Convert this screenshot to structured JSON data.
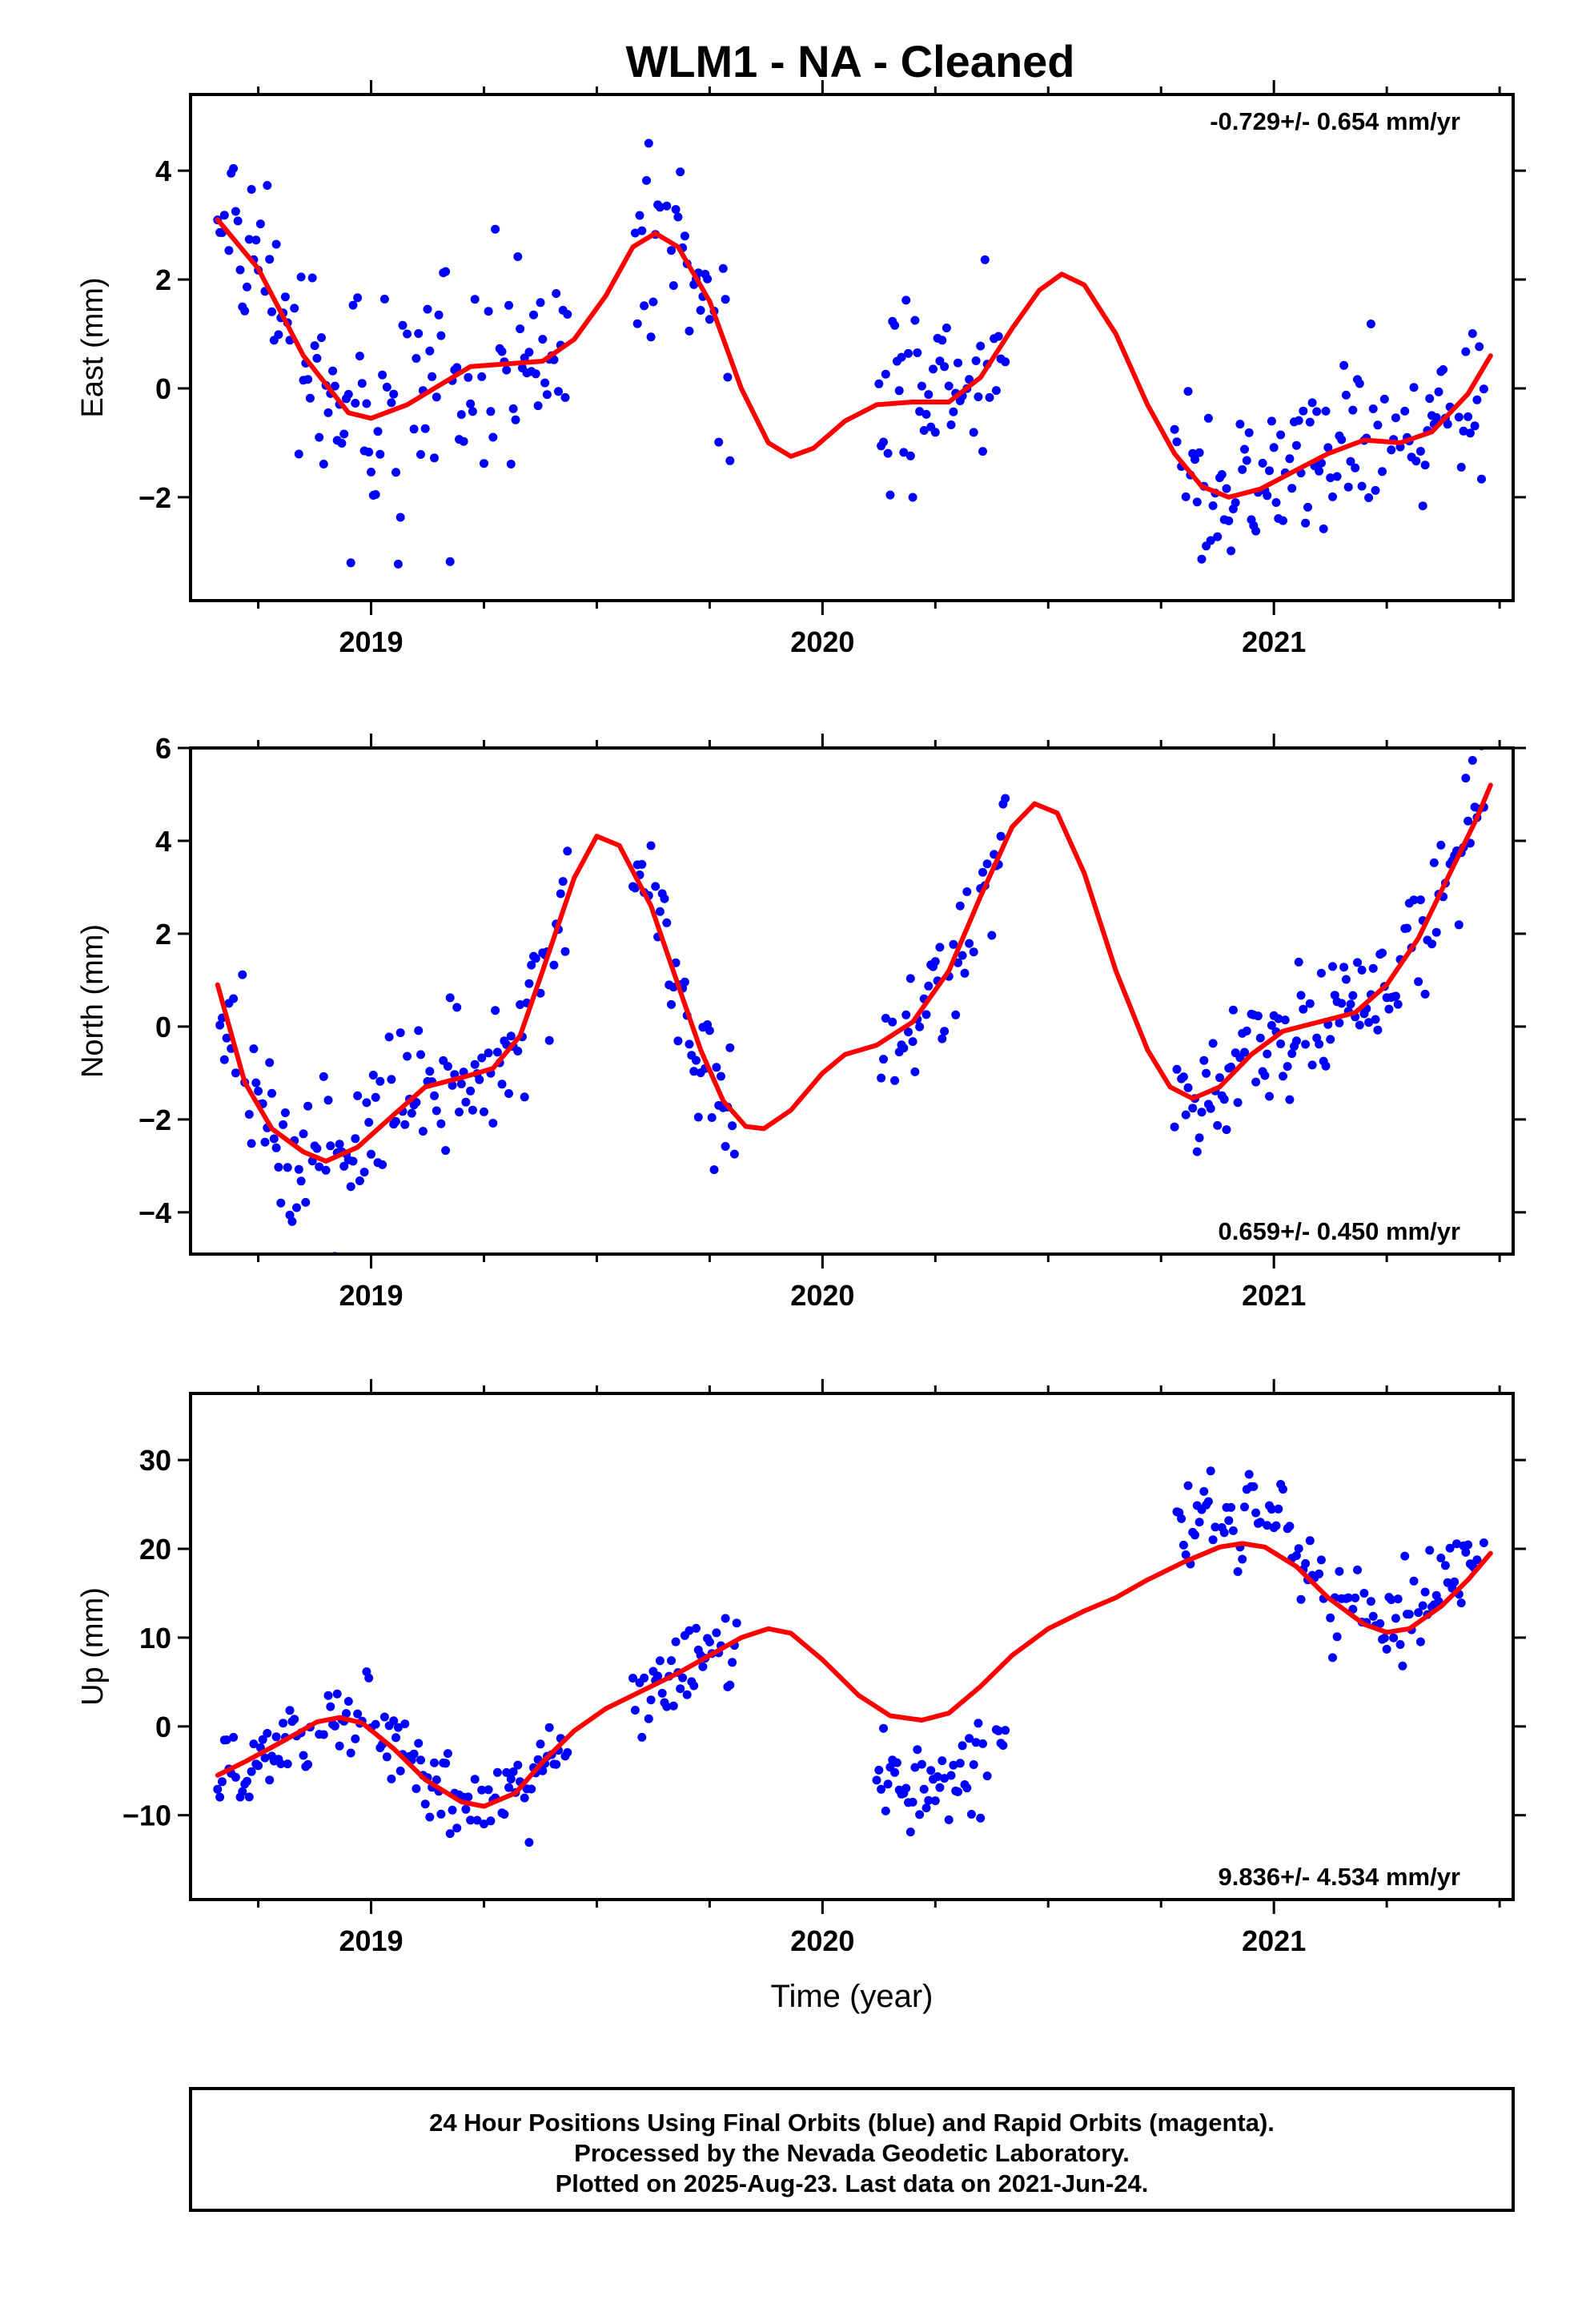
{
  "page": {
    "title": "WLM1  - NA - Cleaned",
    "footer_lines": [
      "24 Hour Positions Using Final Orbits (blue) and Rapid Orbits (magenta).",
      "Processed by the Nevada Geodetic Laboratory.",
      "Plotted on 2025-Aug-23. Last data on 2021-Jun-24."
    ]
  },
  "chart_data": [
    {
      "type": "scatter",
      "id": "east",
      "ylabel": "East (mm)",
      "xlabel": "",
      "rate_label": "-0.729+/- 0.654 mm/yr",
      "rate_position": "top-right",
      "xlim": [
        2018.6,
        2021.53
      ],
      "ylim": [
        -3.9,
        5.4
      ],
      "xticks": [
        2019,
        2020,
        2021
      ],
      "xtick_labels": [
        "2019",
        "2020",
        "2021"
      ],
      "yticks": [
        -2,
        0,
        2,
        4
      ],
      "ytick_labels": [
        "−2",
        "0",
        "2",
        "4"
      ],
      "point_color": "#0000ff",
      "fit_color": "#ff0000",
      "fit": [
        [
          2018.66,
          3.1
        ],
        [
          2018.75,
          2.2
        ],
        [
          2018.85,
          0.6
        ],
        [
          2018.95,
          -0.45
        ],
        [
          2019.0,
          -0.55
        ],
        [
          2019.08,
          -0.3
        ],
        [
          2019.15,
          0.05
        ],
        [
          2019.22,
          0.4
        ],
        [
          2019.3,
          0.45
        ],
        [
          2019.38,
          0.5
        ],
        [
          2019.45,
          0.9
        ],
        [
          2019.52,
          1.7
        ],
        [
          2019.58,
          2.6
        ],
        [
          2019.63,
          2.85
        ],
        [
          2019.68,
          2.6
        ],
        [
          2019.75,
          1.6
        ],
        [
          2019.82,
          0.0
        ],
        [
          2019.88,
          -1.0
        ],
        [
          2019.93,
          -1.25
        ],
        [
          2019.98,
          -1.1
        ],
        [
          2020.05,
          -0.6
        ],
        [
          2020.12,
          -0.3
        ],
        [
          2020.2,
          -0.25
        ],
        [
          2020.28,
          -0.25
        ],
        [
          2020.35,
          0.2
        ],
        [
          2020.42,
          1.1
        ],
        [
          2020.48,
          1.8
        ],
        [
          2020.53,
          2.1
        ],
        [
          2020.58,
          1.9
        ],
        [
          2020.65,
          1.0
        ],
        [
          2020.72,
          -0.3
        ],
        [
          2020.78,
          -1.2
        ],
        [
          2020.84,
          -1.8
        ],
        [
          2020.9,
          -2.0
        ],
        [
          2020.97,
          -1.85
        ],
        [
          2021.05,
          -1.5
        ],
        [
          2021.12,
          -1.2
        ],
        [
          2021.2,
          -0.95
        ],
        [
          2021.28,
          -1.0
        ],
        [
          2021.35,
          -0.8
        ],
        [
          2021.43,
          -0.1
        ],
        [
          2021.48,
          0.6
        ]
      ],
      "segments": [
        {
          "x0": 2018.66,
          "x1": 2019.44,
          "amp": 1.2
        },
        {
          "x0": 2019.58,
          "x1": 2019.8,
          "amp": 1.25
        },
        {
          "x0": 2020.12,
          "x1": 2020.41,
          "amp": 1.05
        },
        {
          "x0": 2020.78,
          "x1": 2021.47,
          "amp": 0.9
        }
      ]
    },
    {
      "type": "scatter",
      "id": "north",
      "ylabel": "North (mm)",
      "xlabel": "",
      "rate_label": "0.659+/- 0.450 mm/yr",
      "rate_position": "bottom-right",
      "xlim": [
        2018.6,
        2021.53
      ],
      "ylim": [
        -4.9,
        6.0
      ],
      "xticks": [
        2019,
        2020,
        2021
      ],
      "xtick_labels": [
        "2019",
        "2020",
        "2021"
      ],
      "yticks": [
        -4,
        -2,
        0,
        2,
        4,
        6
      ],
      "ytick_labels": [
        "−4",
        "−2",
        "0",
        "2",
        "4",
        "6"
      ],
      "point_color": "#0000ff",
      "fit_color": "#ff0000",
      "fit": [
        [
          2018.66,
          0.9
        ],
        [
          2018.72,
          -1.2
        ],
        [
          2018.78,
          -2.2
        ],
        [
          2018.85,
          -2.7
        ],
        [
          2018.9,
          -2.9
        ],
        [
          2018.97,
          -2.6
        ],
        [
          2019.05,
          -1.9
        ],
        [
          2019.12,
          -1.3
        ],
        [
          2019.2,
          -1.1
        ],
        [
          2019.27,
          -0.9
        ],
        [
          2019.33,
          -0.2
        ],
        [
          2019.38,
          1.2
        ],
        [
          2019.45,
          3.2
        ],
        [
          2019.5,
          4.1
        ],
        [
          2019.55,
          3.9
        ],
        [
          2019.62,
          2.6
        ],
        [
          2019.68,
          0.9
        ],
        [
          2019.73,
          -0.5
        ],
        [
          2019.78,
          -1.6
        ],
        [
          2019.83,
          -2.15
        ],
        [
          2019.87,
          -2.2
        ],
        [
          2019.93,
          -1.8
        ],
        [
          2020.0,
          -1.0
        ],
        [
          2020.05,
          -0.6
        ],
        [
          2020.12,
          -0.4
        ],
        [
          2020.2,
          0.1
        ],
        [
          2020.28,
          1.2
        ],
        [
          2020.35,
          2.8
        ],
        [
          2020.42,
          4.3
        ],
        [
          2020.47,
          4.8
        ],
        [
          2020.52,
          4.6
        ],
        [
          2020.58,
          3.3
        ],
        [
          2020.65,
          1.2
        ],
        [
          2020.72,
          -0.5
        ],
        [
          2020.77,
          -1.3
        ],
        [
          2020.82,
          -1.55
        ],
        [
          2020.88,
          -1.3
        ],
        [
          2020.95,
          -0.6
        ],
        [
          2021.02,
          -0.1
        ],
        [
          2021.1,
          0.1
        ],
        [
          2021.18,
          0.3
        ],
        [
          2021.25,
          0.9
        ],
        [
          2021.32,
          1.9
        ],
        [
          2021.38,
          3.1
        ],
        [
          2021.45,
          4.5
        ],
        [
          2021.48,
          5.2
        ]
      ],
      "segments": [
        {
          "x0": 2018.66,
          "x1": 2019.44,
          "amp": 1.05
        },
        {
          "x0": 2019.58,
          "x1": 2019.81,
          "amp": 0.95
        },
        {
          "x0": 2020.13,
          "x1": 2020.41,
          "amp": 0.95
        },
        {
          "x0": 2020.78,
          "x1": 2021.47,
          "amp": 0.85
        }
      ]
    },
    {
      "type": "scatter",
      "id": "up",
      "ylabel": "Up (mm)",
      "xlabel": "Time (year)",
      "rate_label": "9.836+/- 4.534 mm/yr",
      "rate_position": "bottom-right",
      "xlim": [
        2018.6,
        2021.53
      ],
      "ylim": [
        -19.5,
        37.5
      ],
      "xticks": [
        2019,
        2020,
        2021
      ],
      "xtick_labels": [
        "2019",
        "2020",
        "2021"
      ],
      "yticks": [
        -10,
        0,
        10,
        20,
        30
      ],
      "ytick_labels": [
        "−10",
        "0",
        "10",
        "20",
        "30"
      ],
      "point_color": "#0000ff",
      "fit_color": "#ff0000",
      "fit": [
        [
          2018.66,
          -5.5
        ],
        [
          2018.72,
          -4.0
        ],
        [
          2018.8,
          -1.8
        ],
        [
          2018.88,
          0.5
        ],
        [
          2018.93,
          1.0
        ],
        [
          2018.98,
          0.4
        ],
        [
          2019.05,
          -2.5
        ],
        [
          2019.12,
          -6.0
        ],
        [
          2019.2,
          -8.5
        ],
        [
          2019.25,
          -9.0
        ],
        [
          2019.32,
          -7.5
        ],
        [
          2019.38,
          -4.0
        ],
        [
          2019.45,
          -0.5
        ],
        [
          2019.52,
          2.0
        ],
        [
          2019.6,
          4.0
        ],
        [
          2019.68,
          6.0
        ],
        [
          2019.75,
          8.0
        ],
        [
          2019.82,
          10.0
        ],
        [
          2019.88,
          11.0
        ],
        [
          2019.93,
          10.5
        ],
        [
          2020.0,
          7.5
        ],
        [
          2020.08,
          3.5
        ],
        [
          2020.15,
          1.2
        ],
        [
          2020.22,
          0.7
        ],
        [
          2020.28,
          1.5
        ],
        [
          2020.35,
          4.5
        ],
        [
          2020.42,
          8.0
        ],
        [
          2020.5,
          11.0
        ],
        [
          2020.58,
          13.0
        ],
        [
          2020.65,
          14.5
        ],
        [
          2020.72,
          16.5
        ],
        [
          2020.8,
          18.5
        ],
        [
          2020.88,
          20.2
        ],
        [
          2020.93,
          20.6
        ],
        [
          2020.98,
          20.2
        ],
        [
          2021.05,
          18.0
        ],
        [
          2021.12,
          14.5
        ],
        [
          2021.2,
          11.5
        ],
        [
          2021.25,
          10.6
        ],
        [
          2021.3,
          11.0
        ],
        [
          2021.37,
          13.5
        ],
        [
          2021.43,
          16.5
        ],
        [
          2021.48,
          19.5
        ]
      ],
      "segments": [
        {
          "x0": 2018.66,
          "x1": 2019.44,
          "amp": 3.2
        },
        {
          "x0": 2019.58,
          "x1": 2019.82,
          "amp": 3.0
        },
        {
          "x0": 2020.12,
          "x1": 2020.41,
          "amp": 3.0
        },
        {
          "x0": 2020.78,
          "x1": 2021.47,
          "amp": 3.3
        }
      ],
      "offsets": [
        {
          "x0": 2020.12,
          "x1": 2020.41,
          "dy": -7.5
        },
        {
          "x0": 2020.78,
          "x1": 2021.05,
          "dy": 3.5
        },
        {
          "x0": 2021.15,
          "x1": 2021.47,
          "dy": 2.0
        }
      ]
    }
  ]
}
